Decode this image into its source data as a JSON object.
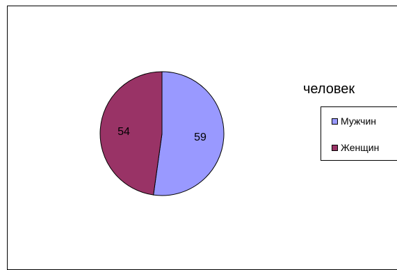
{
  "chart_data": {
    "type": "pie",
    "title": "",
    "legend_title": "человек",
    "legend_position": "right",
    "slices": [
      {
        "label": "Мужчин",
        "value": 59,
        "color": "#9999ff"
      },
      {
        "label": "Женщин",
        "value": 54,
        "color": "#993366"
      }
    ]
  }
}
